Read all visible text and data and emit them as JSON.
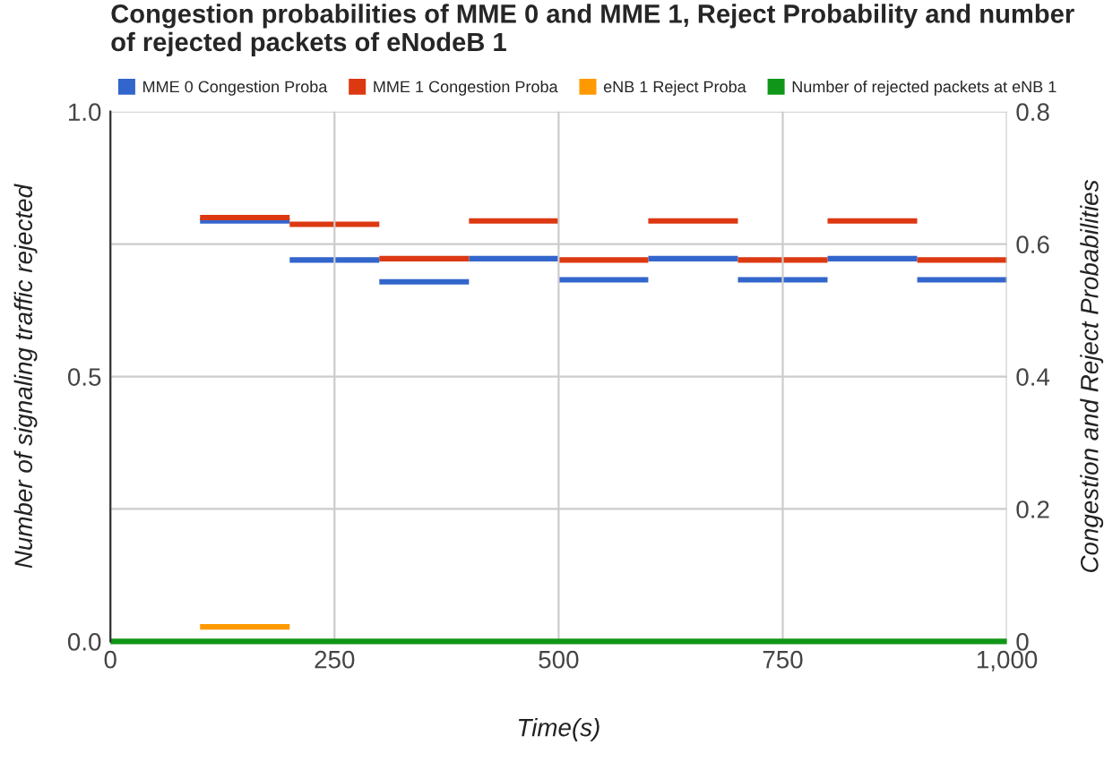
{
  "chart_data": {
    "type": "step",
    "title": "Congestion probabilities of MME 0 and MME 1, Reject Probability and number of rejected packets of eNodeB 1",
    "xlabel": "Time(s)",
    "ylabel": "Number of signaling traffic rejected",
    "y2label": "Congestion and Reject Probabilities",
    "xlim": [
      0,
      1000
    ],
    "xticks": [
      0,
      250,
      500,
      750,
      {
        "value": 1000,
        "label": "1,000"
      }
    ],
    "ylim": [
      0,
      1
    ],
    "yticks": [
      {
        "value": 0,
        "label": "0.0"
      },
      0.5,
      {
        "value": 1,
        "label": "1.0"
      }
    ],
    "y2lim": [
      0,
      0.8
    ],
    "y2ticks": [
      0,
      0.2,
      0.4,
      0.6,
      0.8
    ],
    "grid": true,
    "legend": "top",
    "line_style": "solid",
    "marker": "none",
    "series": [
      {
        "name": "MME 0 Congestion Proba",
        "color": "#3366cc",
        "axis": "y2",
        "x": [
          100,
          200,
          300,
          400,
          500,
          600,
          700,
          800,
          900,
          1000
        ],
        "values": [
          0.635,
          0.576,
          0.543,
          0.578,
          0.546,
          0.578,
          0.546,
          0.578,
          0.546,
          0.546
        ]
      },
      {
        "name": "MME 1 Congestion Proba",
        "color": "#dc3912",
        "axis": "y2",
        "x": [
          100,
          200,
          300,
          400,
          500,
          600,
          700,
          800,
          900,
          1000
        ],
        "values": [
          0.64,
          0.63,
          0.578,
          0.635,
          0.576,
          0.635,
          0.576,
          0.635,
          0.576,
          0.576
        ]
      },
      {
        "name": "eNB 1 Reject Proba",
        "color": "#ff9900",
        "axis": "y2",
        "x": [
          100,
          200
        ],
        "values": [
          0.022,
          0.022
        ]
      },
      {
        "name": "Number of rejected packets at eNB 1",
        "color": "#109618",
        "axis": "y",
        "x": [
          0,
          1000
        ],
        "values": [
          0,
          0
        ]
      }
    ]
  }
}
